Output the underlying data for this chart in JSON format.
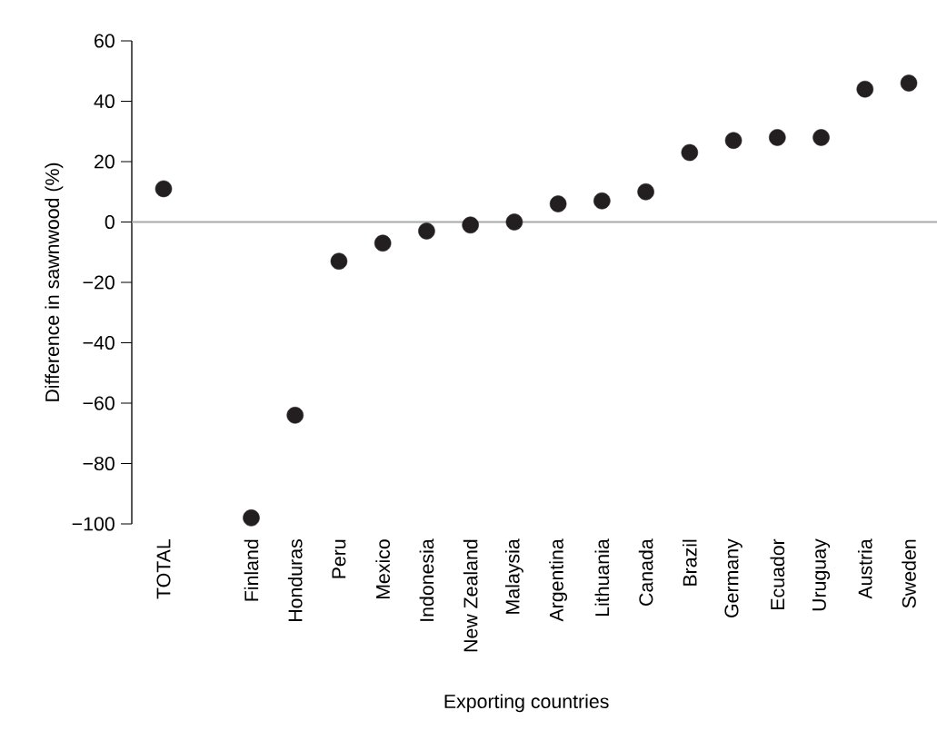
{
  "chart_data": {
    "type": "scatter",
    "xlabel": "Exporting countries",
    "ylabel": "Difference in sawnwood (%)",
    "categories": [
      "TOTAL",
      null,
      "Finland",
      "Honduras",
      "Peru",
      "Mexico",
      "Indonesia",
      "New Zealand",
      "Malaysia",
      "Argentina",
      "Lithuania",
      "Canada",
      "Brazil",
      "Germany",
      "Ecuador",
      "Uruguay",
      "Austria",
      "Sweden"
    ],
    "values": [
      11,
      null,
      -98,
      -64,
      -13,
      -7,
      -3,
      -1,
      0,
      6,
      7,
      10,
      23,
      27,
      28,
      28,
      44,
      46
    ],
    "color": "#231f20",
    "marker": "circle",
    "ylim": [
      -100,
      60
    ],
    "yticks": [
      {
        "value": -100,
        "label": "−100"
      },
      {
        "value": -80,
        "label": "−80"
      },
      {
        "value": -60,
        "label": "−60"
      },
      {
        "value": -40,
        "label": "−40"
      },
      {
        "value": -20,
        "label": "−20"
      },
      0,
      20,
      40,
      60
    ],
    "ref_lines": [
      {
        "axis": "y",
        "value": 0,
        "color": "#a7a9ac"
      }
    ]
  }
}
